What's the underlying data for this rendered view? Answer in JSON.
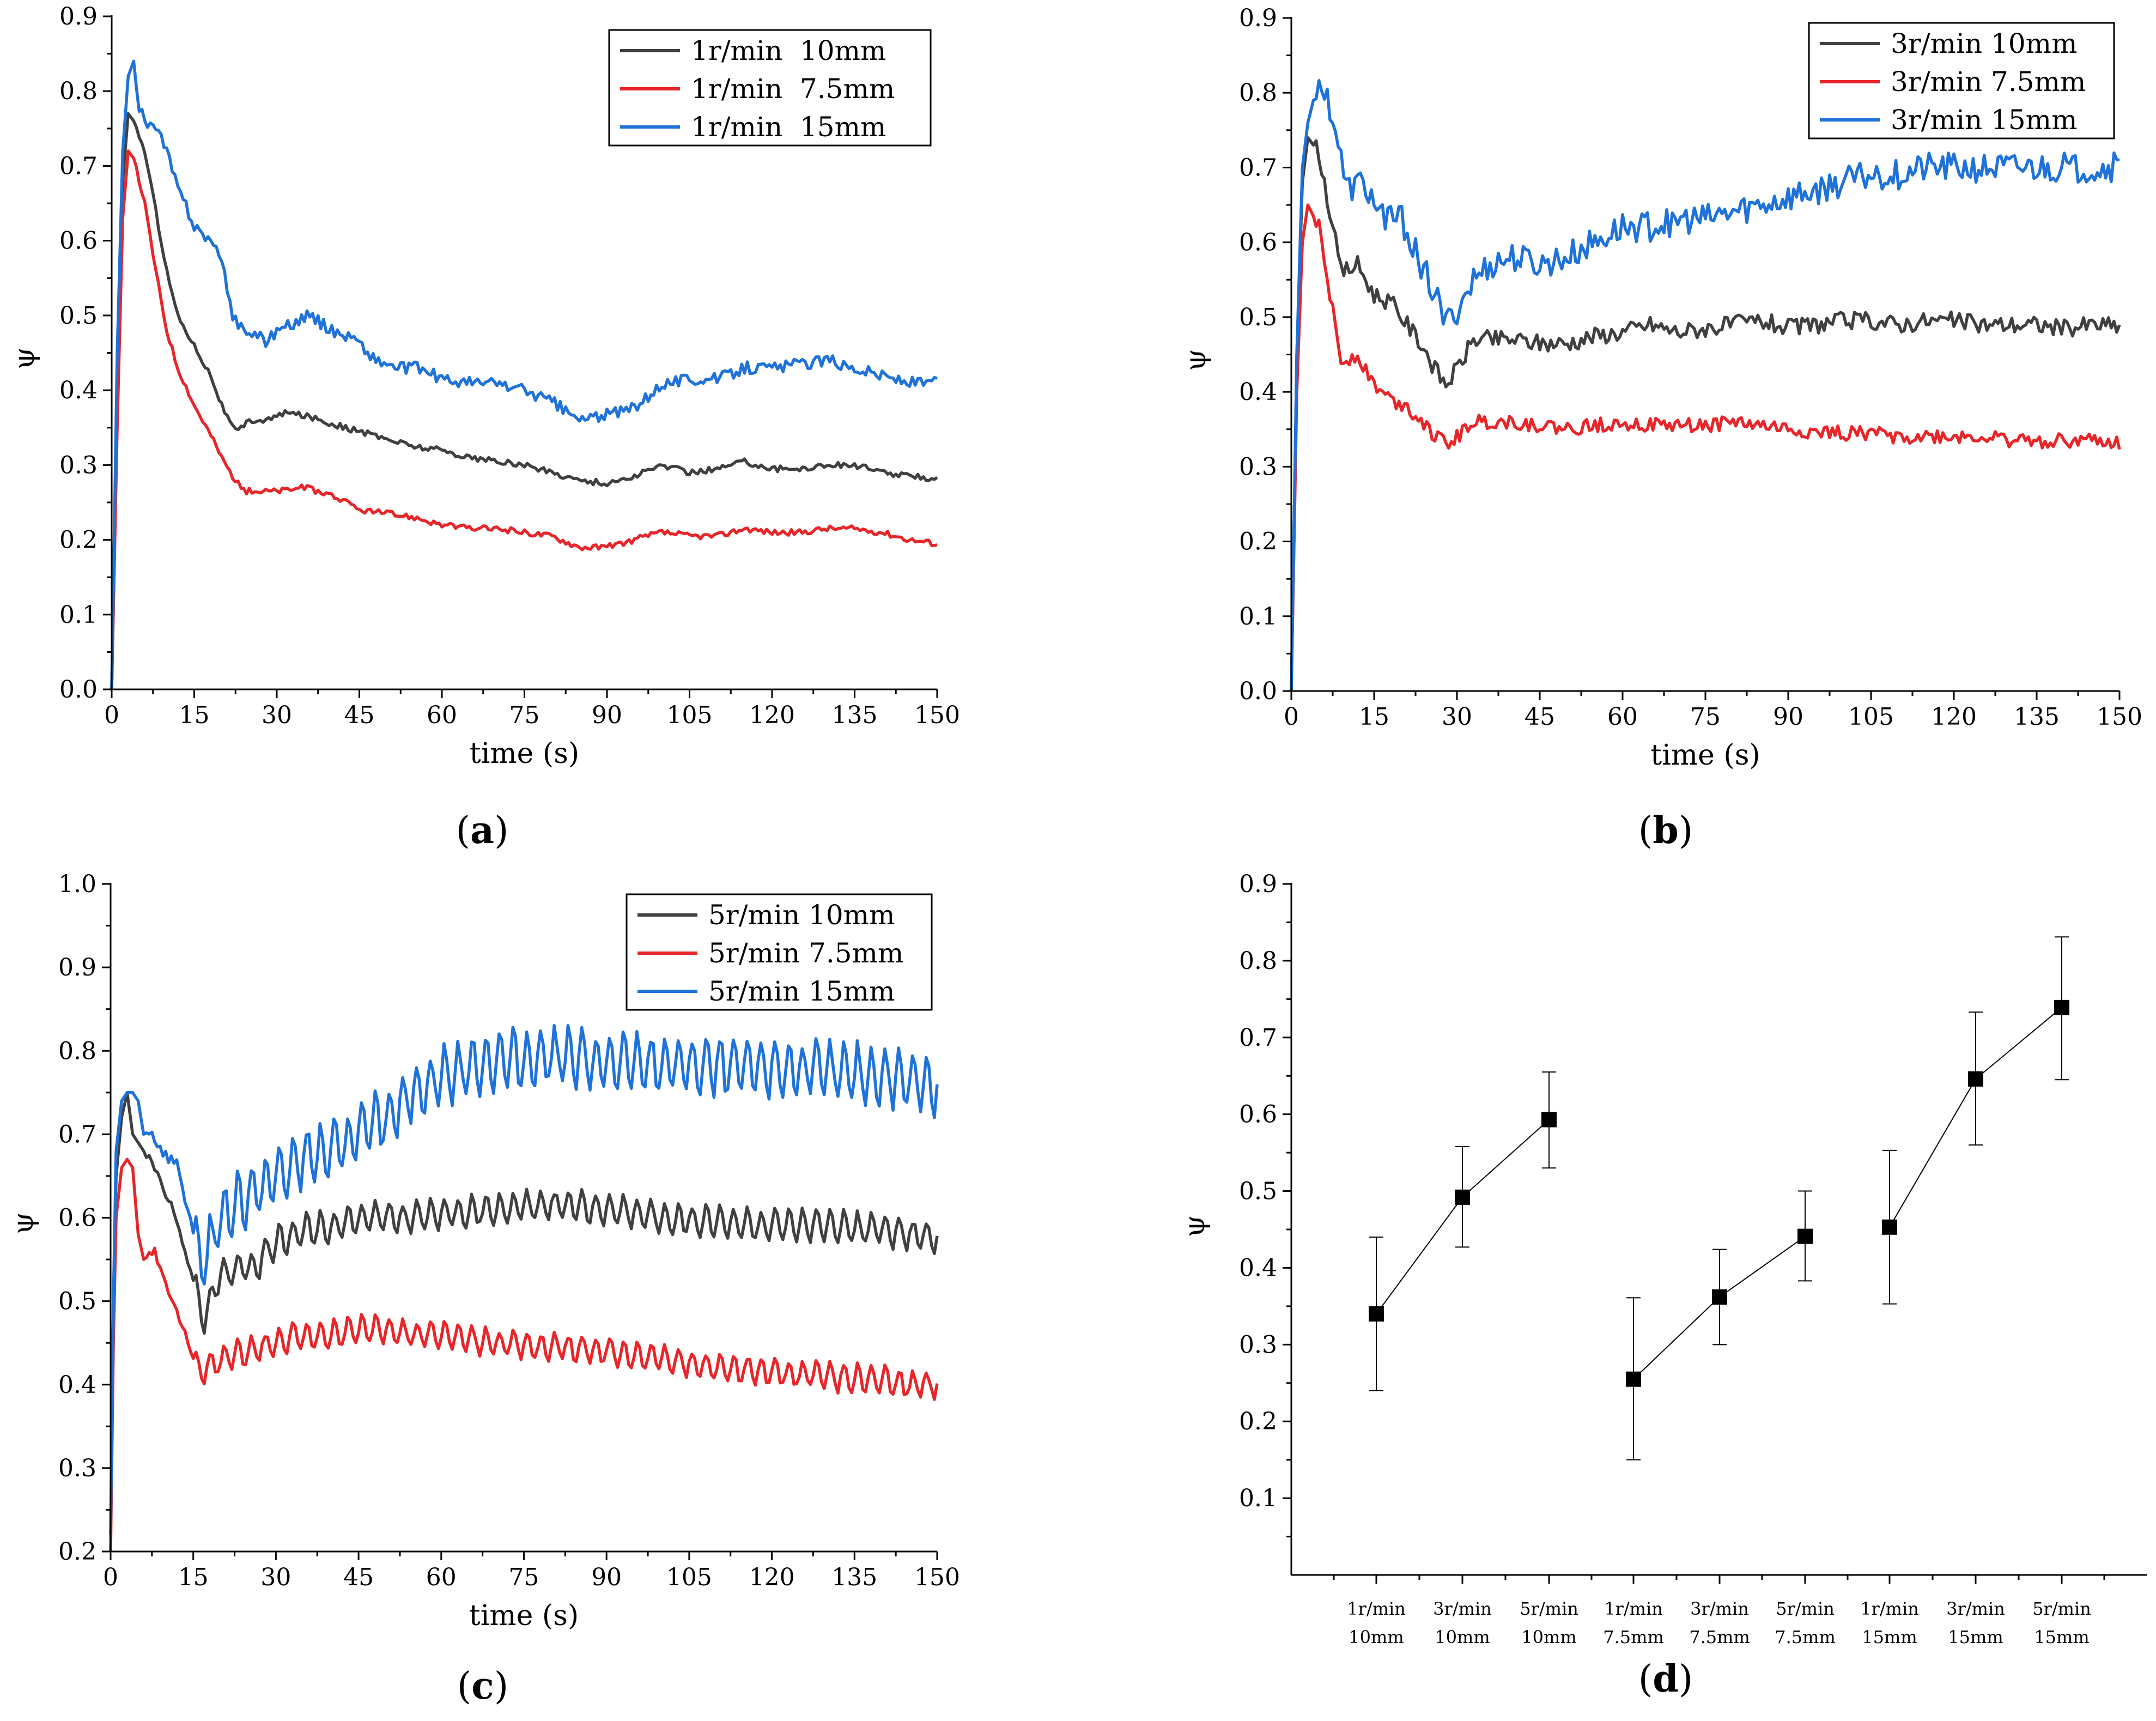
{
  "figure": {
    "panels": [
      {
        "label_open": "(",
        "label_letter": "a",
        "label_close": ")"
      },
      {
        "label_open": "(",
        "label_letter": "b",
        "label_close": ")"
      },
      {
        "label_open": "(",
        "label_letter": "c",
        "label_close": ")"
      },
      {
        "label_open": "(",
        "label_letter": "d",
        "label_close": ")"
      }
    ]
  },
  "chart_data": [
    {
      "type": "line",
      "panel": "a",
      "title": "",
      "xlabel": "time (s)",
      "ylabel": "ψ",
      "xlim": [
        0,
        150
      ],
      "ylim": [
        0.0,
        0.9
      ],
      "xticks": [
        0,
        15,
        30,
        45,
        60,
        75,
        90,
        105,
        120,
        135,
        150
      ],
      "yticks": [
        0.0,
        0.1,
        0.2,
        0.3,
        0.4,
        0.5,
        0.6,
        0.7,
        0.8,
        0.9
      ],
      "ytick_labels": [
        "0.0",
        "0.1",
        "0.2",
        "0.3",
        "0.4",
        "0.5",
        "0.6",
        "0.7",
        "0.8",
        "0.9"
      ],
      "legend_position": "top-right",
      "series": [
        {
          "name": "1r/min  10mm",
          "color": "#404040",
          "jitter": 0.004,
          "x": [
            0,
            1,
            2,
            3,
            4,
            6,
            8,
            10,
            12,
            15,
            18,
            20,
            22,
            23,
            25,
            28,
            32,
            36,
            40,
            45,
            50,
            55,
            60,
            65,
            70,
            75,
            80,
            85,
            90,
            95,
            100,
            105,
            110,
            115,
            120,
            125,
            130,
            135,
            140,
            145,
            150
          ],
          "y": [
            0.0,
            0.4,
            0.68,
            0.77,
            0.76,
            0.72,
            0.64,
            0.56,
            0.5,
            0.46,
            0.42,
            0.38,
            0.35,
            0.345,
            0.36,
            0.36,
            0.37,
            0.365,
            0.355,
            0.345,
            0.335,
            0.325,
            0.32,
            0.31,
            0.305,
            0.3,
            0.29,
            0.28,
            0.275,
            0.285,
            0.3,
            0.29,
            0.295,
            0.305,
            0.295,
            0.295,
            0.3,
            0.3,
            0.29,
            0.285,
            0.282
          ]
        },
        {
          "name": "1r/min  7.5mm",
          "color": "#e8262a",
          "jitter": 0.004,
          "x": [
            0,
            1,
            2,
            3,
            4,
            6,
            8,
            10,
            12,
            15,
            18,
            20,
            22,
            24,
            26,
            30,
            35,
            40,
            45,
            50,
            55,
            60,
            65,
            70,
            75,
            80,
            85,
            90,
            95,
            100,
            105,
            110,
            115,
            120,
            125,
            130,
            135,
            140,
            145,
            150
          ],
          "y": [
            0.0,
            0.35,
            0.63,
            0.72,
            0.71,
            0.65,
            0.56,
            0.48,
            0.43,
            0.38,
            0.34,
            0.31,
            0.285,
            0.265,
            0.265,
            0.265,
            0.27,
            0.26,
            0.24,
            0.235,
            0.23,
            0.22,
            0.215,
            0.215,
            0.21,
            0.205,
            0.19,
            0.19,
            0.2,
            0.21,
            0.205,
            0.205,
            0.215,
            0.21,
            0.21,
            0.215,
            0.215,
            0.21,
            0.2,
            0.195
          ]
        },
        {
          "name": "1r/min  15mm",
          "color": "#1f72d8",
          "jitter": 0.008,
          "x": [
            0,
            1,
            2,
            3,
            4,
            5,
            6,
            8,
            10,
            12,
            15,
            18,
            20,
            22,
            24,
            26,
            28,
            30,
            33,
            36,
            40,
            44,
            48,
            52,
            56,
            60,
            65,
            70,
            75,
            80,
            85,
            88,
            92,
            96,
            100,
            105,
            110,
            115,
            120,
            125,
            130,
            135,
            140,
            145,
            150
          ],
          "y": [
            0.0,
            0.45,
            0.72,
            0.82,
            0.84,
            0.78,
            0.76,
            0.75,
            0.72,
            0.67,
            0.62,
            0.6,
            0.57,
            0.5,
            0.48,
            0.475,
            0.465,
            0.48,
            0.49,
            0.5,
            0.48,
            0.47,
            0.44,
            0.43,
            0.43,
            0.415,
            0.41,
            0.41,
            0.4,
            0.385,
            0.36,
            0.365,
            0.37,
            0.38,
            0.41,
            0.415,
            0.415,
            0.43,
            0.43,
            0.435,
            0.44,
            0.43,
            0.42,
            0.41,
            0.41
          ]
        }
      ]
    },
    {
      "type": "line",
      "panel": "b",
      "title": "",
      "xlabel": "time (s)",
      "ylabel": "ψ",
      "xlim": [
        0,
        150
      ],
      "ylim": [
        0.0,
        0.9
      ],
      "xticks": [
        0,
        15,
        30,
        45,
        60,
        75,
        90,
        105,
        120,
        135,
        150
      ],
      "yticks": [
        0.0,
        0.1,
        0.2,
        0.3,
        0.4,
        0.5,
        0.6,
        0.7,
        0.8,
        0.9
      ],
      "ytick_labels": [
        "0.0",
        "0.1",
        "0.2",
        "0.3",
        "0.4",
        "0.5",
        "0.6",
        "0.7",
        "0.8",
        "0.9"
      ],
      "legend_position": "top-right",
      "series": [
        {
          "name": "3r/min 10mm",
          "color": "#404040",
          "jitter": 0.012,
          "x": [
            0,
            1,
            2,
            3,
            5,
            7,
            9,
            12,
            15,
            18,
            21,
            24,
            26,
            28,
            30,
            33,
            36,
            40,
            45,
            50,
            55,
            60,
            65,
            70,
            75,
            80,
            85,
            90,
            95,
            100,
            105,
            110,
            115,
            120,
            125,
            130,
            135,
            140,
            145,
            150
          ],
          "y": [
            0.0,
            0.45,
            0.68,
            0.74,
            0.72,
            0.64,
            0.56,
            0.57,
            0.53,
            0.52,
            0.49,
            0.46,
            0.43,
            0.41,
            0.43,
            0.47,
            0.47,
            0.47,
            0.465,
            0.465,
            0.475,
            0.48,
            0.49,
            0.48,
            0.485,
            0.49,
            0.495,
            0.485,
            0.49,
            0.495,
            0.495,
            0.49,
            0.495,
            0.495,
            0.49,
            0.49,
            0.49,
            0.485,
            0.49,
            0.488
          ]
        },
        {
          "name": "3r/min 7.5mm",
          "color": "#e8262a",
          "jitter": 0.01,
          "x": [
            0,
            1,
            2,
            3,
            5,
            7,
            9,
            12,
            15,
            18,
            21,
            24,
            26,
            28,
            30,
            33,
            36,
            40,
            45,
            50,
            55,
            60,
            65,
            70,
            75,
            80,
            85,
            90,
            95,
            100,
            105,
            110,
            115,
            120,
            125,
            130,
            135,
            140,
            145,
            150
          ],
          "y": [
            0.0,
            0.4,
            0.6,
            0.65,
            0.62,
            0.53,
            0.44,
            0.45,
            0.41,
            0.39,
            0.38,
            0.36,
            0.34,
            0.33,
            0.34,
            0.36,
            0.36,
            0.36,
            0.355,
            0.35,
            0.355,
            0.36,
            0.355,
            0.355,
            0.355,
            0.36,
            0.355,
            0.35,
            0.345,
            0.345,
            0.345,
            0.34,
            0.34,
            0.34,
            0.34,
            0.335,
            0.335,
            0.335,
            0.335,
            0.33
          ]
        },
        {
          "name": "3r/min 15mm",
          "color": "#1f72d8",
          "jitter": 0.02,
          "x": [
            0,
            1,
            2,
            3,
            4,
            6,
            8,
            10,
            13,
            16,
            20,
            23,
            26,
            28,
            30,
            33,
            36,
            40,
            45,
            50,
            55,
            60,
            65,
            70,
            75,
            80,
            85,
            90,
            95,
            100,
            105,
            110,
            115,
            120,
            125,
            130,
            135,
            140,
            145,
            150
          ],
          "y": [
            0.0,
            0.45,
            0.7,
            0.76,
            0.79,
            0.81,
            0.75,
            0.67,
            0.68,
            0.64,
            0.63,
            0.58,
            0.53,
            0.49,
            0.51,
            0.55,
            0.57,
            0.58,
            0.57,
            0.58,
            0.6,
            0.62,
            0.62,
            0.63,
            0.63,
            0.64,
            0.65,
            0.66,
            0.67,
            0.68,
            0.69,
            0.69,
            0.7,
            0.7,
            0.7,
            0.7,
            0.7,
            0.7,
            0.7,
            0.7
          ]
        }
      ]
    },
    {
      "type": "line",
      "panel": "c",
      "title": "",
      "xlabel": "time (s)",
      "ylabel": "ψ",
      "xlim": [
        0,
        150
      ],
      "ylim": [
        0.2,
        1.0
      ],
      "xticks": [
        0,
        15,
        30,
        45,
        60,
        75,
        90,
        105,
        120,
        135,
        150
      ],
      "yticks": [
        0.2,
        0.3,
        0.4,
        0.5,
        0.6,
        0.7,
        0.8,
        0.9,
        1.0
      ],
      "ytick_labels": [
        "0.2",
        "0.3",
        "0.4",
        "0.5",
        "0.6",
        "0.7",
        "0.8",
        "0.9",
        "1.0"
      ],
      "legend_position": "top-right",
      "oscillation": {
        "start_x": 15,
        "period": 2.5
      },
      "series": [
        {
          "name": "5r/min 10mm",
          "color": "#404040",
          "amp": 0.018,
          "x": [
            0,
            0.5,
            1,
            2,
            3,
            4,
            5,
            6,
            7,
            8,
            10,
            12,
            14,
            16,
            17,
            20,
            23,
            26,
            30,
            35,
            40,
            45,
            50,
            55,
            60,
            70,
            80,
            90,
            100,
            110,
            120,
            130,
            140,
            145,
            150
          ],
          "y": [
            0.22,
            0.5,
            0.65,
            0.72,
            0.75,
            0.7,
            0.69,
            0.68,
            0.67,
            0.66,
            0.63,
            0.6,
            0.55,
            0.5,
            0.48,
            0.53,
            0.54,
            0.54,
            0.57,
            0.585,
            0.59,
            0.6,
            0.6,
            0.6,
            0.605,
            0.61,
            0.615,
            0.61,
            0.6,
            0.595,
            0.59,
            0.59,
            0.585,
            0.58,
            0.575
          ]
        },
        {
          "name": "5r/min 7.5mm",
          "color": "#e8262a",
          "amp": 0.016,
          "x": [
            0,
            0.5,
            1,
            2,
            3,
            4,
            5,
            6,
            8,
            10,
            12,
            14,
            16,
            18,
            20,
            25,
            30,
            35,
            40,
            45,
            50,
            55,
            60,
            70,
            80,
            90,
            100,
            110,
            120,
            130,
            140,
            145,
            150
          ],
          "y": [
            0.2,
            0.45,
            0.6,
            0.66,
            0.67,
            0.66,
            0.58,
            0.55,
            0.56,
            0.52,
            0.49,
            0.45,
            0.42,
            0.42,
            0.43,
            0.44,
            0.45,
            0.46,
            0.46,
            0.465,
            0.465,
            0.46,
            0.46,
            0.45,
            0.445,
            0.44,
            0.43,
            0.42,
            0.415,
            0.41,
            0.405,
            0.4,
            0.4
          ]
        },
        {
          "name": "5r/min 15mm",
          "color": "#1f72d8",
          "amp": 0.034,
          "x": [
            0,
            0.5,
            1,
            2,
            3,
            4,
            5,
            6,
            8,
            10,
            12,
            14,
            16,
            17,
            20,
            23,
            26,
            30,
            35,
            40,
            45,
            50,
            55,
            60,
            65,
            70,
            75,
            80,
            85,
            90,
            95,
            100,
            110,
            120,
            130,
            140,
            145,
            150
          ],
          "y": [
            0.22,
            0.5,
            0.68,
            0.74,
            0.75,
            0.75,
            0.74,
            0.7,
            0.69,
            0.68,
            0.66,
            0.6,
            0.56,
            0.55,
            0.6,
            0.62,
            0.63,
            0.65,
            0.67,
            0.68,
            0.7,
            0.72,
            0.75,
            0.77,
            0.78,
            0.79,
            0.79,
            0.795,
            0.79,
            0.785,
            0.785,
            0.785,
            0.78,
            0.78,
            0.775,
            0.77,
            0.765,
            0.76
          ]
        }
      ]
    },
    {
      "type": "scatter",
      "panel": "d",
      "title": "",
      "xlabel": "",
      "ylabel": "ψ",
      "ylim": [
        0.0,
        0.9
      ],
      "yticks": [
        0.1,
        0.2,
        0.3,
        0.4,
        0.5,
        0.6,
        0.7,
        0.8,
        0.9
      ],
      "ytick_labels": [
        "0.1",
        "0.2",
        "0.3",
        "0.4",
        "0.5",
        "0.6",
        "0.7",
        "0.8",
        "0.9"
      ],
      "categories": [
        {
          "line1": "1r/min",
          "line2": "10mm"
        },
        {
          "line1": "3r/min",
          "line2": "10mm"
        },
        {
          "line1": "5r/min",
          "line2": "10mm"
        },
        {
          "line1": "1r/min",
          "line2": "7.5mm"
        },
        {
          "line1": "3r/min",
          "line2": "7.5mm"
        },
        {
          "line1": "5r/min",
          "line2": "7.5mm"
        },
        {
          "line1": "1r/min",
          "line2": "15mm"
        },
        {
          "line1": "3r/min",
          "line2": "15mm"
        },
        {
          "line1": "5r/min",
          "line2": "15mm"
        }
      ],
      "values": [
        0.34,
        0.492,
        0.593,
        0.255,
        0.362,
        0.441,
        0.453,
        0.646,
        0.739
      ],
      "error_low": [
        0.24,
        0.427,
        0.53,
        0.15,
        0.3,
        0.383,
        0.353,
        0.56,
        0.645
      ],
      "error_high": [
        0.44,
        0.558,
        0.655,
        0.361,
        0.424,
        0.5,
        0.553,
        0.733,
        0.831
      ],
      "groups": [
        [
          0,
          1,
          2
        ],
        [
          3,
          4,
          5
        ],
        [
          6,
          7,
          8
        ]
      ],
      "marker_color": "#000000"
    }
  ]
}
